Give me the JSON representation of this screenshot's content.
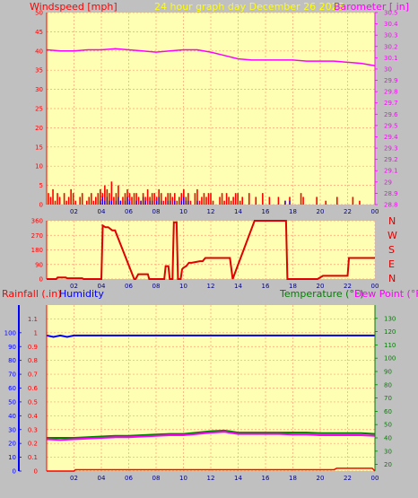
{
  "header": {
    "windspeed_label": "Windspeed [mph]",
    "caption": "24 hour graph day   December 26 2023",
    "barometer_label": "Barometer [ in]"
  },
  "colors": {
    "background": "#c0c0c0",
    "plot_bg": "#ffffb3",
    "grid": "#ff9d7a",
    "windspeed": "#ff0000",
    "gust": "#ff0000",
    "wind_avg": "#0000ff",
    "wind_green": "#008000",
    "barometer": "#ff00ff",
    "direction": "#e00000",
    "rainfall": "#ff0000",
    "humidity": "#0000ff",
    "temperature": "#008000",
    "dewpoint": "#ff00ff",
    "caption": "#ffff00"
  },
  "compass": [
    "N",
    "W",
    "S",
    "E",
    "N"
  ],
  "lower": {
    "rainfall_label": "Rainfall (.in)",
    "humidity_label": "Humidity",
    "temperature_label": "Temperature (°F)",
    "dewpoint_label": "Dew Point (°F)"
  },
  "chart_data": [
    {
      "type": "line",
      "panel": "wind-barometer",
      "x_ticks": [
        "02",
        "04",
        "06",
        "08",
        "10",
        "12",
        "14",
        "16",
        "18",
        "20",
        "22",
        "00"
      ],
      "xlim_hours": [
        0,
        24
      ],
      "y_left": {
        "label": "Windspeed [mph]",
        "ticks": [
          0,
          5,
          10,
          15,
          20,
          25,
          30,
          35,
          40,
          45,
          50
        ],
        "ylim": [
          0,
          50
        ]
      },
      "y_right": {
        "label": "Barometer [ in]",
        "ticks": [
          "28.8",
          "28.9",
          "29",
          "29.1",
          "29.2",
          "29.3",
          "29.4",
          "29.5",
          "29.6",
          "29.7",
          "29.8",
          "29.9",
          "30",
          "30.1",
          "30.2",
          "30.3",
          "30.4",
          "30.5"
        ],
        "ylim": [
          28.8,
          30.5
        ]
      },
      "series": [
        {
          "name": "Barometer [ in]",
          "axis": "right",
          "x": [
            0,
            1,
            2,
            3,
            4,
            5,
            6,
            7,
            8,
            9,
            10,
            11,
            12,
            13,
            14,
            15,
            16,
            17,
            18,
            19,
            20,
            21,
            22,
            23,
            24
          ],
          "values": [
            30.17,
            30.16,
            30.16,
            30.17,
            30.17,
            30.18,
            30.17,
            30.16,
            30.15,
            30.16,
            30.17,
            30.17,
            30.15,
            30.12,
            30.09,
            30.08,
            30.08,
            30.08,
            30.08,
            30.07,
            30.07,
            30.07,
            30.06,
            30.05,
            30.03
          ]
        },
        {
          "name": "Windspeed [mph]",
          "axis": "left",
          "style": "spikes",
          "values": [
            3,
            2,
            4,
            1,
            3,
            2,
            0,
            3,
            1,
            2,
            4,
            3,
            1,
            0,
            2,
            3,
            0,
            1,
            2,
            3,
            1,
            2,
            3,
            4,
            3,
            5,
            4,
            3,
            6,
            2,
            3,
            5,
            1,
            2,
            3,
            4,
            3,
            2,
            3,
            3,
            2,
            1,
            3,
            2,
            4,
            2,
            3,
            3,
            2,
            4,
            3,
            1,
            2,
            3,
            3,
            2,
            3,
            1,
            2,
            3,
            4,
            2,
            3,
            1,
            0,
            3,
            4,
            1,
            2,
            3,
            2,
            3,
            3,
            1,
            0,
            0,
            2,
            3,
            1,
            3,
            2,
            1,
            2,
            3,
            3,
            1,
            2,
            0,
            0,
            3,
            0,
            0,
            2,
            0,
            0,
            3,
            0,
            0,
            2,
            0,
            0,
            0,
            2,
            0,
            0,
            1,
            0,
            2,
            0,
            0,
            0,
            0,
            3,
            2,
            0,
            0,
            0,
            0,
            0,
            2,
            0,
            0,
            0,
            1,
            0,
            0,
            0,
            0,
            2,
            0,
            0,
            0,
            0,
            0,
            0,
            2,
            0,
            0,
            1,
            0,
            0,
            0,
            0,
            0
          ]
        },
        {
          "name": "",
          "axis": "left",
          "style": "spikes",
          "values": [
            0,
            0,
            0,
            0,
            0,
            0,
            0,
            0,
            0,
            0,
            0,
            0,
            0,
            0,
            0,
            0,
            0,
            0,
            0,
            0,
            0,
            0,
            0,
            1,
            2,
            1,
            2,
            1,
            1,
            0,
            1,
            2,
            1,
            0,
            1,
            2,
            1,
            0,
            0,
            1,
            0,
            1,
            2,
            1,
            0,
            1,
            1,
            0,
            1,
            2,
            1,
            0,
            0,
            1,
            1,
            0,
            1,
            0,
            0,
            1,
            2,
            1,
            1,
            0,
            0,
            0,
            1,
            0,
            0,
            0,
            0,
            0,
            0,
            0,
            0,
            0,
            0,
            0,
            0,
            0,
            0,
            0,
            0,
            0,
            0,
            0,
            0,
            0,
            0,
            0,
            0,
            0,
            0,
            0,
            0,
            0,
            0,
            0,
            0,
            0,
            0,
            0,
            0,
            0,
            0,
            1,
            0,
            1,
            0,
            0,
            0,
            0,
            0,
            0,
            0,
            0,
            0,
            0,
            0,
            0,
            0,
            0,
            0,
            0,
            0,
            0,
            0,
            0,
            0,
            0,
            0,
            0,
            0,
            0,
            0,
            0,
            0,
            0,
            0,
            0,
            0,
            0,
            0,
            0
          ]
        }
      ]
    },
    {
      "type": "line",
      "panel": "wind-direction",
      "x_ticks": [
        "02",
        "04",
        "06",
        "08",
        "10",
        "12",
        "14",
        "16",
        "18",
        "20",
        "22",
        "00"
      ],
      "xlim_hours": [
        0,
        24
      ],
      "y_left": {
        "ticks": [
          0,
          90,
          180,
          270,
          360
        ],
        "ylim": [
          0,
          360
        ]
      },
      "series": [
        {
          "name": "",
          "style": "step",
          "x": [
            0,
            0.7,
            0.8,
            1.4,
            1.5,
            2.6,
            2.7,
            4.0,
            4.1,
            4.3,
            4.5,
            4.8,
            5.0,
            6.4,
            6.5,
            6.7,
            7.4,
            7.5,
            7.7,
            8.6,
            8.7,
            8.9,
            9.0,
            9.2,
            9.3,
            9.5,
            9.6,
            9.8,
            9.9,
            10.0,
            10.2,
            10.4,
            10.6,
            11.2,
            11.4,
            11.6,
            12.0,
            12.4,
            12.6,
            13.4,
            13.6,
            15.2,
            17.5,
            17.6,
            19.8,
            20.2,
            22.0,
            22.1,
            24.0
          ],
          "values": [
            0,
            0,
            10,
            10,
            5,
            5,
            0,
            0,
            330,
            320,
            320,
            300,
            300,
            0,
            0,
            30,
            30,
            0,
            0,
            0,
            80,
            80,
            0,
            0,
            350,
            350,
            0,
            0,
            60,
            70,
            80,
            100,
            100,
            110,
            110,
            130,
            130,
            130,
            130,
            130,
            0,
            360,
            360,
            0,
            0,
            20,
            20,
            130,
            130
          ]
        }
      ]
    },
    {
      "type": "line",
      "panel": "temp-humidity-rain",
      "x_ticks": [
        "02",
        "04",
        "06",
        "08",
        "10",
        "12",
        "14",
        "16",
        "18",
        "20",
        "22",
        "00"
      ],
      "xlim_hours": [
        0,
        24
      ],
      "y_left": {
        "label": "Rainfall (.in)",
        "ticks": [
          "0",
          "0.1",
          "0.2",
          "0.3",
          "0.4",
          "0.5",
          "0.6",
          "0.7",
          "0.8",
          "0.9",
          "1",
          "1.1"
        ],
        "ylim": [
          0,
          1.2
        ]
      },
      "y_right": {
        "label": "Temperature (°F)",
        "ticks": [
          20,
          30,
          40,
          50,
          60,
          70,
          80,
          90,
          100,
          110,
          120,
          130
        ],
        "ylim": [
          15,
          140
        ]
      },
      "y_humidity": {
        "label": "Humidity",
        "ticks": [
          0,
          10,
          20,
          30,
          40,
          50,
          60,
          70,
          80,
          90,
          100
        ],
        "ylim": [
          0,
          120
        ]
      },
      "series": [
        {
          "name": "Humidity",
          "axis": "humidity",
          "x": [
            0,
            0.5,
            1,
            1.5,
            2,
            4,
            8,
            12,
            16,
            20,
            24
          ],
          "values": [
            98,
            97,
            98,
            97,
            98,
            98,
            98,
            98,
            98,
            98,
            98
          ]
        },
        {
          "name": "Temperature (°F)",
          "axis": "right",
          "x": [
            0,
            1,
            2,
            3,
            4,
            5,
            6,
            7,
            8,
            9,
            10,
            11,
            12,
            13,
            14,
            15,
            16,
            17,
            18,
            19,
            20,
            21,
            22,
            23,
            24
          ],
          "values": [
            40,
            40,
            40,
            40.5,
            41,
            41.5,
            41.5,
            42,
            42.5,
            43,
            43,
            44,
            45,
            45.5,
            44,
            44,
            44,
            44,
            44,
            44,
            43.5,
            43.5,
            43.5,
            43.5,
            43
          ]
        },
        {
          "name": "Dew Point (°F)",
          "axis": "right",
          "x": [
            0,
            1,
            2,
            3,
            4,
            5,
            6,
            7,
            8,
            9,
            10,
            11,
            12,
            13,
            14,
            15,
            16,
            17,
            18,
            19,
            20,
            21,
            22,
            23,
            24
          ],
          "values": [
            39,
            38.5,
            39,
            39.5,
            40,
            40.5,
            40.5,
            41,
            41.5,
            42,
            42,
            43,
            44,
            44.5,
            43,
            43,
            43,
            43,
            42.5,
            42.5,
            42,
            42,
            42,
            42,
            41.5
          ]
        },
        {
          "name": "Rainfall (.in)",
          "axis": "left",
          "style": "step",
          "x": [
            0,
            2,
            2.1,
            21.0,
            21.2,
            23.8,
            24
          ],
          "values": [
            0,
            0,
            0.01,
            0.01,
            0.02,
            0.02,
            0
          ]
        }
      ]
    }
  ]
}
